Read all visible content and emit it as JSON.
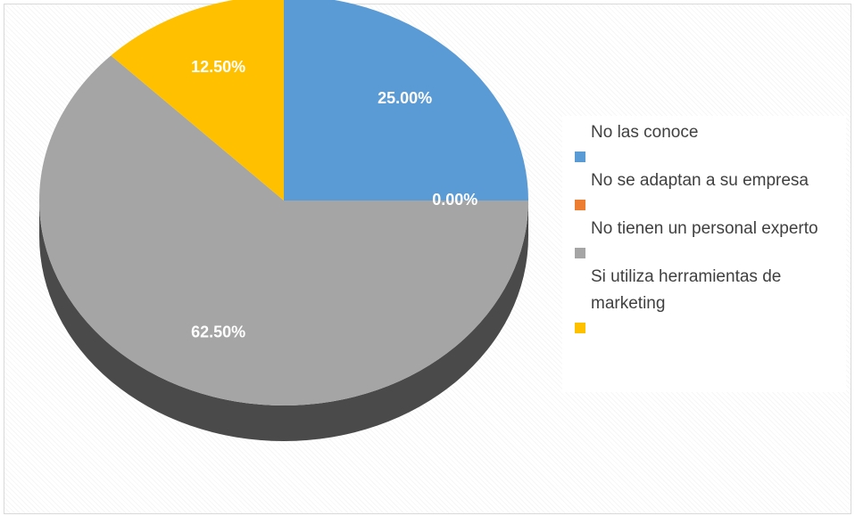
{
  "chart_data": {
    "type": "pie",
    "categories": [
      "No las conoce",
      "No se adaptan a su empresa",
      "No tienen un personal experto",
      "Si utiliza herramientas de marketing"
    ],
    "values": [
      25,
      0,
      62.5,
      12.5
    ],
    "value_labels": [
      "25.00%",
      "0.00%",
      "62.50%",
      "12.50%"
    ],
    "colors": [
      "#5b9bd5",
      "#ed7d31",
      "#a5a5a5",
      "#ffc000"
    ],
    "legend": "right"
  }
}
